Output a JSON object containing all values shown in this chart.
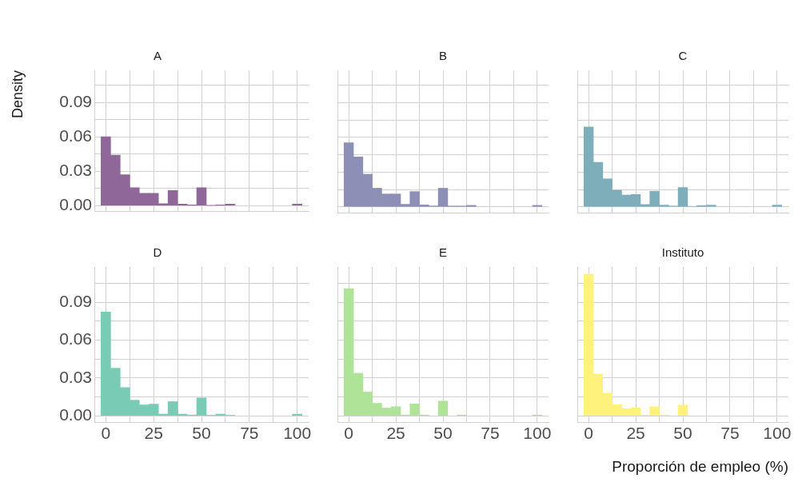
{
  "chart_data": [
    {
      "type": "histogram",
      "title": "A",
      "ylabel": "Density",
      "color": "#8f6798",
      "bins": [
        -2.5,
        2.5,
        7.5,
        12.5,
        17.5,
        22.5,
        27.5,
        32.5,
        37.5,
        42.5,
        47.5,
        52.5,
        57.5,
        62.5,
        67.5,
        72.5,
        77.5,
        82.5,
        87.5,
        92.5,
        97.5,
        102.5
      ],
      "values": [
        0.06,
        0.044,
        0.027,
        0.0157,
        0.0107,
        0.0107,
        0.0017,
        0.0132,
        0.0013,
        0.0007,
        0.0156,
        0.0003,
        0.0007,
        0.0013,
        0,
        0,
        0,
        0,
        0,
        0,
        0.0013
      ],
      "xlim": [
        -6,
        106
      ],
      "xticks": [
        0,
        {
          "value": 12.5,
          "label": null
        },
        25,
        {
          "value": 37.5,
          "label": null
        },
        50,
        {
          "value": 62.5,
          "label": null
        },
        75,
        {
          "value": 87.5,
          "label": null
        },
        100
      ],
      "ylim": [
        -0.005,
        0.118
      ],
      "yticks": [
        {
          "value": 0,
          "label": "0.00"
        },
        {
          "value": 0.015,
          "label": null
        },
        0.03,
        {
          "value": 0.045,
          "label": null
        },
        0.06,
        {
          "value": 0.075,
          "label": null
        },
        0.09,
        {
          "value": 0.105,
          "label": null
        }
      ],
      "grid": true,
      "tick_labels": "y"
    },
    {
      "type": "histogram",
      "title": "B",
      "color": "#8d8fb7",
      "bins": [
        -2.5,
        2.5,
        7.5,
        12.5,
        17.5,
        22.5,
        27.5,
        32.5,
        37.5,
        42.5,
        47.5,
        52.5,
        57.5,
        62.5,
        67.5,
        72.5,
        77.5,
        82.5,
        87.5,
        92.5,
        97.5,
        102.5
      ],
      "values": [
        0.0554,
        0.0432,
        0.0282,
        0.0161,
        0.0111,
        0.0111,
        0.0022,
        0.0132,
        0.0017,
        0.0008,
        0.0161,
        0.0007,
        0.0007,
        0.0013,
        0,
        0,
        0,
        0,
        0,
        0,
        0.0013
      ],
      "xlim": [
        -6,
        106
      ],
      "xticks": [
        0,
        {
          "value": 12.5,
          "label": null
        },
        25,
        {
          "value": 37.5,
          "label": null
        },
        50,
        {
          "value": 62.5,
          "label": null
        },
        75,
        {
          "value": 87.5,
          "label": null
        },
        100
      ],
      "ylim": [
        -0.005,
        0.118
      ],
      "yticks": [
        0,
        {
          "value": 0.015,
          "label": null
        },
        0.03,
        {
          "value": 0.045,
          "label": null
        },
        0.06,
        {
          "value": 0.075,
          "label": null
        },
        0.09,
        {
          "value": 0.105,
          "label": null
        }
      ],
      "grid": true,
      "tick_labels": false
    },
    {
      "type": "histogram",
      "title": "C",
      "color": "#7faebb",
      "bins": [
        -2.5,
        2.5,
        7.5,
        12.5,
        17.5,
        22.5,
        27.5,
        32.5,
        37.5,
        42.5,
        47.5,
        52.5,
        57.5,
        62.5,
        67.5,
        72.5,
        77.5,
        82.5,
        87.5,
        92.5,
        97.5,
        102.5
      ],
      "values": [
        0.069,
        0.0385,
        0.0242,
        0.0144,
        0.0102,
        0.0107,
        0.002,
        0.0135,
        0.0015,
        0.0007,
        0.0167,
        0.0004,
        0.0011,
        0.0015,
        0,
        0,
        0,
        0,
        0,
        0,
        0.0015
      ],
      "xlim": [
        -6,
        106
      ],
      "xticks": [
        0,
        {
          "value": 12.5,
          "label": null
        },
        25,
        {
          "value": 37.5,
          "label": null
        },
        50,
        {
          "value": 62.5,
          "label": null
        },
        75,
        {
          "value": 87.5,
          "label": null
        },
        100
      ],
      "ylim": [
        -0.005,
        0.118
      ],
      "yticks": [
        0,
        {
          "value": 0.015,
          "label": null
        },
        0.03,
        {
          "value": 0.045,
          "label": null
        },
        0.06,
        {
          "value": 0.075,
          "label": null
        },
        0.09,
        {
          "value": 0.105,
          "label": null
        }
      ],
      "grid": true,
      "tick_labels": false
    },
    {
      "type": "histogram",
      "title": "D",
      "color": "#7acbb5",
      "bins": [
        -2.5,
        2.5,
        7.5,
        12.5,
        17.5,
        22.5,
        27.5,
        32.5,
        37.5,
        42.5,
        47.5,
        52.5,
        57.5,
        62.5,
        67.5,
        72.5,
        77.5,
        82.5,
        87.5,
        92.5,
        97.5,
        102.5
      ],
      "values": [
        0.0823,
        0.0377,
        0.0224,
        0.0123,
        0.0086,
        0.0092,
        0.0013,
        0.0112,
        0.0013,
        0.0006,
        0.0141,
        0.0004,
        0.0013,
        0.0004,
        0,
        0,
        0,
        0,
        0,
        0,
        0.0013
      ],
      "xlim": [
        -6,
        106
      ],
      "xticks": [
        0,
        {
          "value": 12.5,
          "label": null
        },
        25,
        {
          "value": 37.5,
          "label": null
        },
        50,
        {
          "value": 62.5,
          "label": null
        },
        75,
        {
          "value": 87.5,
          "label": null
        },
        100
      ],
      "ylim": [
        -0.005,
        0.118
      ],
      "yticks": [
        {
          "value": 0,
          "label": "0.00"
        },
        {
          "value": 0.015,
          "label": null
        },
        0.03,
        {
          "value": 0.045,
          "label": null
        },
        0.06,
        {
          "value": 0.075,
          "label": null
        },
        0.09,
        {
          "value": 0.105,
          "label": null
        }
      ],
      "grid": true
    },
    {
      "type": "histogram",
      "title": "E",
      "color": "#afe397",
      "bins": [
        -2.5,
        2.5,
        7.5,
        12.5,
        17.5,
        22.5,
        27.5,
        32.5,
        37.5,
        42.5,
        47.5,
        52.5,
        57.5,
        62.5,
        67.5,
        72.5,
        77.5,
        82.5,
        87.5,
        92.5,
        97.5,
        102.5
      ],
      "values": [
        0.1009,
        0.0337,
        0.0188,
        0.0099,
        0.0061,
        0.0072,
        0.0006,
        0.0094,
        0.0006,
        0,
        0.0116,
        0,
        0.0006,
        0,
        0,
        0,
        0,
        0,
        0,
        0,
        0.0006
      ],
      "xlim": [
        -6,
        106
      ],
      "xticks": [
        0,
        {
          "value": 12.5,
          "label": null
        },
        25,
        {
          "value": 37.5,
          "label": null
        },
        50,
        {
          "value": 62.5,
          "label": null
        },
        75,
        {
          "value": 87.5,
          "label": null
        },
        100
      ],
      "ylim": [
        -0.005,
        0.118
      ],
      "yticks": [
        0,
        {
          "value": 0.015,
          "label": null
        },
        0.03,
        {
          "value": 0.045,
          "label": null
        },
        0.06,
        {
          "value": 0.075,
          "label": null
        },
        0.09,
        {
          "value": 0.105,
          "label": null
        }
      ],
      "grid": true,
      "tick_labels": "x"
    },
    {
      "type": "histogram",
      "title": "Instituto",
      "xlabel": "Proporción de empleo (%)",
      "color": "#fef17c",
      "bins": [
        -2.5,
        2.5,
        7.5,
        12.5,
        17.5,
        22.5,
        27.5,
        32.5,
        37.5,
        42.5,
        47.5,
        52.5,
        57.5,
        62.5,
        67.5,
        72.5,
        77.5,
        82.5,
        87.5,
        92.5,
        97.5,
        102.5
      ],
      "values": [
        0.1123,
        0.0331,
        0.0179,
        0.0088,
        0.0057,
        0.0063,
        0.0006,
        0.0072,
        0.0006,
        0,
        0.0083,
        0,
        0,
        0,
        0,
        0,
        0,
        0,
        0,
        0,
        0
      ],
      "xlim": [
        -6,
        106
      ],
      "xticks": [
        0,
        {
          "value": 12.5,
          "label": null
        },
        25,
        {
          "value": 37.5,
          "label": null
        },
        50,
        {
          "value": 62.5,
          "label": null
        },
        75,
        {
          "value": 87.5,
          "label": null
        },
        100
      ],
      "ylim": [
        -0.005,
        0.118
      ],
      "yticks": [
        0,
        {
          "value": 0.015,
          "label": null
        },
        0.03,
        {
          "value": 0.045,
          "label": null
        },
        0.06,
        {
          "value": 0.075,
          "label": null
        },
        0.09,
        {
          "value": 0.105,
          "label": null
        }
      ],
      "grid": true,
      "tick_labels": "x"
    }
  ]
}
